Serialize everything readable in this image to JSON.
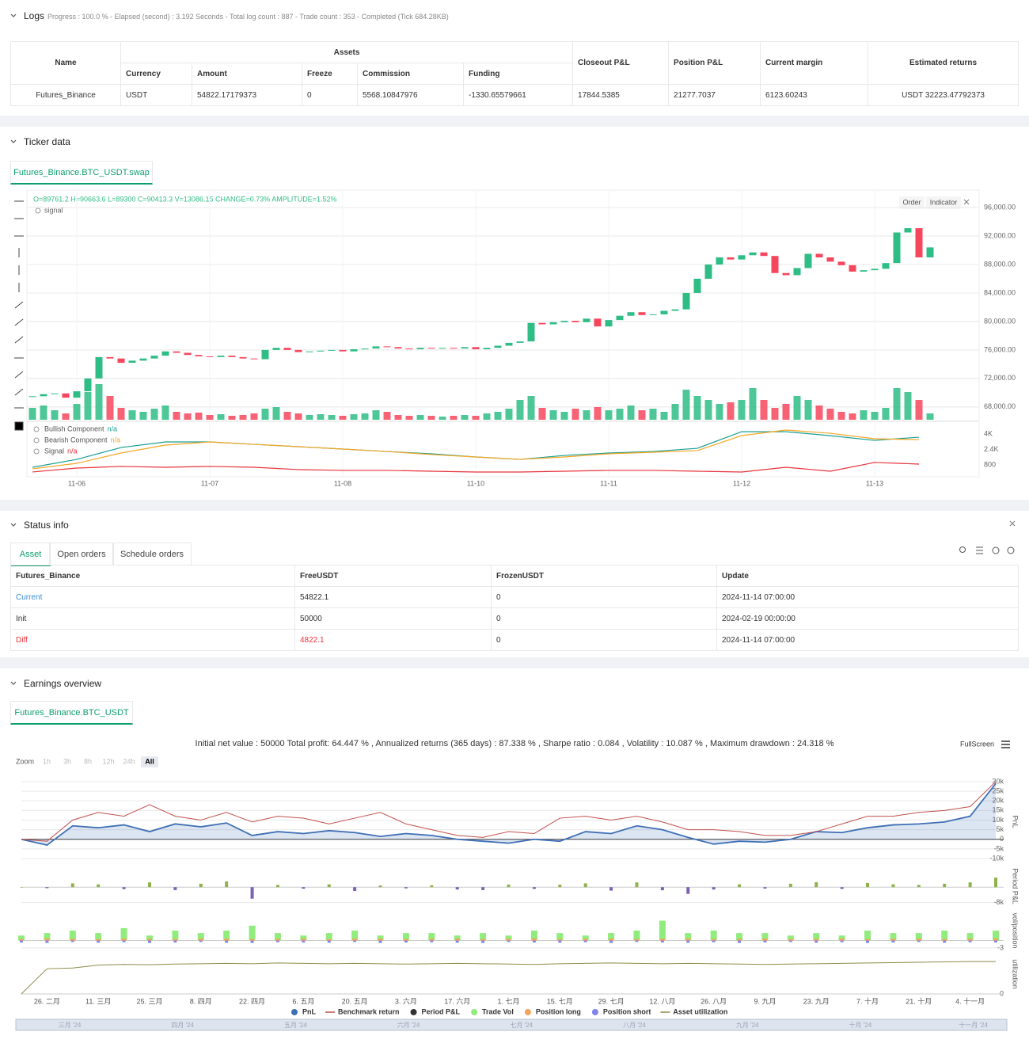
{
  "logs": {
    "title": "Logs",
    "summary": "Progress : 100.0 % - Elapsed (second) : 3.192 Seconds - Total log count : 887 - Trade count : 353 - Completed (Tick 684.28KB)"
  },
  "assets": {
    "name_header": "Name",
    "group_header": "Assets",
    "columns": [
      "Currency",
      "Amount",
      "Freeze",
      "Commission",
      "Funding"
    ],
    "other_headers": [
      "Closeout P&L",
      "Position P&L",
      "Current margin",
      "Estimated returns"
    ],
    "row": [
      "Futures_Binance",
      "USDT",
      "54822.17179373",
      "0",
      "5568.10847976",
      "-1330.65579661",
      "17844.5385",
      "21277.7037",
      "6123.60243",
      "USDT 32223.47792373"
    ]
  },
  "ticker": {
    "title": "Ticker data",
    "tab": "Futures_Binance.BTC_USDT.swap",
    "buttons": [
      "Order",
      "Indicator"
    ]
  },
  "status": {
    "title": "Status info",
    "tabs": [
      "Asset",
      "Open orders",
      "Schedule orders"
    ],
    "headers": [
      "Futures_Binance",
      "FreeUSDT",
      "FrozenUSDT",
      "Update"
    ],
    "rows": [
      [
        "Current",
        "54822.1",
        "0",
        "2024-11-14 07:00:00"
      ],
      [
        "Init",
        "50000",
        "0",
        "2024-02-19 00:00:00"
      ],
      [
        "Diff",
        "4822.1",
        "0",
        "2024-11-14 07:00:00"
      ]
    ]
  },
  "earnings": {
    "title": "Earnings overview",
    "tab": "Futures_Binance.BTC_USDT",
    "stats": "Initial net value : 50000 Total profit: 64.447 % , Annualized returns (365 days) : 87.338 % , Sharpe ratio : 0.084 , Volatility : 10.087 % , Maximum drawdown : 24.318 %",
    "fullscreen": "FullScreen",
    "zoom_label": "Zoom",
    "zoom_buttons": [
      "1h",
      "3h",
      "8h",
      "12h",
      "24h",
      "All"
    ],
    "zoom_active": 5,
    "navigator": [
      "三月 '24",
      "四月 '24",
      "五月 '24",
      "六月 '24",
      "七月 '24",
      "八月 '24",
      "九月 '24",
      "十月 '24",
      "十一月 '24"
    ]
  },
  "chart_data": [
    {
      "type": "candlestick",
      "annotation": "O=89761.2 H=90663.6 L=89300 C=90413.3 V=13086.15 CHANGE=0.73% AMPLITUDE=1.52%",
      "indicator_name": "signal",
      "categories": [
        null,
        null,
        null,
        null,
        "11-06",
        null,
        null,
        null,
        null,
        null,
        null,
        null,
        null,
        null,
        null,
        null,
        "11-07",
        null,
        null,
        null,
        null,
        null,
        null,
        null,
        null,
        null,
        null,
        null,
        "11-08",
        null,
        null,
        null,
        null,
        null,
        null,
        null,
        null,
        null,
        null,
        null,
        "11-10",
        null,
        null,
        null,
        null,
        null,
        null,
        null,
        null,
        null,
        null,
        null,
        "11-11",
        null,
        null,
        null,
        null,
        null,
        null,
        null,
        null,
        null,
        null,
        null,
        "11-12",
        null,
        null,
        null,
        null,
        null,
        null,
        null,
        null,
        null,
        null,
        null,
        "11-13",
        null,
        null,
        null,
        null,
        null
      ],
      "close": [
        69500,
        69800,
        69900,
        69300,
        70200,
        72000,
        75000,
        74800,
        74200,
        74500,
        74800,
        75200,
        75800,
        75600,
        75300,
        75100,
        75000,
        75200,
        75000,
        74800,
        74700,
        76000,
        76300,
        76000,
        75700,
        75800,
        75900,
        76000,
        75800,
        76100,
        76200,
        76500,
        76400,
        76200,
        76100,
        76300,
        76200,
        76300,
        76200,
        76400,
        76100,
        76300,
        76600,
        77000,
        77200,
        79800,
        79600,
        79900,
        80100,
        79900,
        80400,
        79300,
        80200,
        80800,
        81300,
        80900,
        81000,
        81500,
        81700,
        84000,
        86000,
        88000,
        89000,
        88700,
        89300,
        89700,
        89200,
        86800,
        86500,
        87500,
        89500,
        89000,
        88400,
        87900,
        87000,
        87200,
        87400,
        88200,
        92500,
        93100,
        89000,
        90400
      ],
      "volume": [
        15,
        18,
        12,
        8,
        20,
        35,
        45,
        30,
        15,
        12,
        10,
        14,
        18,
        10,
        8,
        9,
        6,
        7,
        5,
        6,
        8,
        14,
        16,
        10,
        8,
        6,
        7,
        6,
        5,
        7,
        8,
        12,
        10,
        6,
        5,
        6,
        5,
        4,
        5,
        6,
        5,
        8,
        10,
        14,
        25,
        30,
        15,
        12,
        10,
        14,
        12,
        16,
        12,
        14,
        18,
        12,
        14,
        10,
        20,
        38,
        30,
        25,
        20,
        22,
        25,
        40,
        25,
        15,
        20,
        30,
        25,
        18,
        14,
        10,
        8,
        12,
        10,
        15,
        40,
        35,
        25,
        8
      ],
      "up_color": "#2ebd85",
      "down_color": "#f6465d",
      "grid": true,
      "ylim": [
        66200,
        98450
      ],
      "yticks": [
        {
          "value": 96000,
          "label": "96,000.00"
        },
        {
          "value": 92000,
          "label": "92,000.00"
        },
        {
          "value": 88000,
          "label": "88,000.00"
        },
        {
          "value": 84000,
          "label": "84,000.00"
        },
        {
          "value": 80000,
          "label": "80,000.00"
        },
        {
          "value": 76000,
          "label": "76,000.00"
        },
        {
          "value": 72000,
          "label": "72,000.00"
        },
        {
          "value": 68000,
          "label": "68,000.00"
        }
      ]
    },
    {
      "type": "line",
      "x": [
        0,
        4,
        8,
        12,
        16,
        20,
        24,
        28,
        32,
        36,
        40,
        44,
        48,
        52,
        56,
        60,
        64,
        68,
        72,
        76,
        80
      ],
      "xlim": [
        0,
        81
      ],
      "ylim": [
        -270,
        5070
      ],
      "yticks": [
        {
          "value": 4000,
          "label": "4K"
        },
        {
          "value": 2400,
          "label": "2.4K"
        },
        800
      ],
      "series": [
        {
          "name": "Bullish Component",
          "current": "n/a",
          "color": "#1a9e92",
          "values": [
            550,
            1370,
            2600,
            3180,
            3180,
            2930,
            2690,
            2440,
            2190,
            1950,
            1620,
            1370,
            1780,
            2030,
            2190,
            2520,
            4240,
            4240,
            3830,
            3340,
            3670
          ]
        },
        {
          "name": "Bearish Component",
          "current": "n/a",
          "color": "#f5a623",
          "values": [
            390,
            960,
            2030,
            2850,
            3180,
            2930,
            2690,
            2440,
            2190,
            1870,
            1620,
            1370,
            1620,
            1950,
            2110,
            2280,
            3840,
            4410,
            4080,
            3510,
            3420
          ]
        },
        {
          "name": "Signal",
          "current": "n/a",
          "color": "#e8333b",
          "values": [
            62,
            470,
            640,
            550,
            640,
            550,
            310,
            230,
            230,
            140,
            60,
            60,
            140,
            230,
            230,
            140,
            60,
            550,
            140,
            1050,
            880
          ]
        }
      ]
    },
    {
      "type": "line",
      "y_label": "PnL",
      "categories": [
        null,
        "26. 二月",
        null,
        "11. 三月",
        null,
        "25. 三月",
        null,
        "8. 四月",
        null,
        "22. 四月",
        null,
        "6. 五月",
        null,
        "20. 五月",
        null,
        "3. 六月",
        null,
        "17. 六月",
        null,
        "1. 七月",
        null,
        "15. 七月",
        null,
        "29. 七月",
        null,
        "12. 八月",
        null,
        "26. 八月",
        null,
        "9. 九月",
        null,
        "23. 九月",
        null,
        "7. 十月",
        null,
        "21. 十月",
        null,
        "4. 十一月",
        null
      ],
      "ylim": [
        -12460,
        30800
      ],
      "yticks": [
        {
          "value": 30000,
          "label": "30k"
        },
        {
          "value": 25000,
          "label": "25k"
        },
        {
          "value": 20000,
          "label": "20k"
        },
        {
          "value": 15000,
          "label": "15k"
        },
        {
          "value": 10000,
          "label": "10k"
        },
        {
          "value": 5000,
          "label": "5k"
        },
        0,
        {
          "value": -5000,
          "label": "-5k"
        },
        {
          "value": -10000,
          "label": "-10k"
        }
      ],
      "series": [
        {
          "name": "PnL",
          "color": "#3f6fb5",
          "marker": "circle",
          "area": true,
          "values": [
            0,
            -3000,
            7000,
            6000,
            7500,
            4000,
            8000,
            6500,
            8500,
            2000,
            4000,
            3000,
            4500,
            3500,
            1500,
            3000,
            2000,
            0,
            -1000,
            -2000,
            0,
            -1000,
            4000,
            3000,
            7000,
            5000,
            1000,
            -2500,
            -1000,
            -1500,
            0,
            4000,
            3500,
            6000,
            7500,
            8000,
            9000,
            12000,
            29000
          ]
        },
        {
          "name": "Benchmark return",
          "color": "#c0504d",
          "marker": "line",
          "area": false,
          "values": [
            0,
            -1000,
            10000,
            14000,
            12000,
            18000,
            12000,
            10000,
            14000,
            9000,
            12000,
            11000,
            8000,
            11000,
            14000,
            8000,
            5000,
            2000,
            1000,
            4000,
            3000,
            11000,
            12000,
            10000,
            12000,
            9000,
            5000,
            5000,
            4000,
            2000,
            2000,
            4000,
            8000,
            12000,
            12000,
            14000,
            15000,
            17000,
            30000
          ]
        }
      ]
    },
    {
      "type": "bar",
      "y_label": "Period P&L",
      "ylim": [
        -9000,
        10000
      ],
      "yticks": [
        {
          "value": -8000,
          "label": "-8k"
        }
      ],
      "positive_color": "#8fb24a",
      "negative_color": "#7a62b0",
      "series": [
        {
          "name": "Period P&L",
          "color": "#333333",
          "marker": "circle",
          "values": [
            0,
            -500,
            2000,
            1500,
            -1000,
            2500,
            -1500,
            1800,
            3000,
            -6000,
            1200,
            -800,
            1500,
            -2000,
            900,
            -600,
            1000,
            -1200,
            -1500,
            1400,
            -900,
            1300,
            2000,
            -1800,
            2500,
            -1600,
            -3500,
            -1200,
            1500,
            -700,
            1800,
            2600,
            -900,
            2200,
            1500,
            1200,
            1800,
            2500,
            5000
          ]
        }
      ]
    },
    {
      "type": "bar",
      "y_label": "vol/position",
      "ylim": [
        -4,
        12
      ],
      "yticks": [
        -3
      ],
      "series": [
        {
          "name": "Trade Vol",
          "color": "#90ed7d",
          "marker": "circle",
          "values": [
            2,
            3,
            4,
            3,
            5,
            2,
            4,
            3,
            4,
            6,
            3,
            2,
            3,
            4,
            2,
            3,
            3,
            2,
            3,
            2,
            4,
            3,
            2,
            3,
            4,
            8,
            3,
            4,
            3,
            3,
            2,
            3,
            2,
            4,
            3,
            3,
            4,
            3,
            4
          ]
        },
        {
          "name": "Position long",
          "color": "#f7a35c",
          "marker": "circle",
          "values": [
            0.6,
            0.8,
            0.7,
            0.6,
            0.8,
            0.7,
            0.6,
            0.8,
            0.7,
            0.6,
            0.7,
            0.8,
            0.6,
            0.7,
            0.8,
            0.6,
            0.7,
            0.8,
            0.6,
            0.7,
            0.8,
            0.6,
            0.7,
            0.8,
            0.6,
            0.7,
            0.8,
            0.6,
            0.7,
            0.8,
            0.6,
            0.7,
            0.8,
            0.6,
            0.7,
            0.8,
            0.6,
            0.7,
            0.8
          ]
        },
        {
          "name": "Position short",
          "color": "#8085e9",
          "marker": "circle",
          "values": [
            -0.8,
            -1,
            -0.6,
            -0.9,
            -0.7,
            -1,
            -0.8,
            -0.6,
            -0.9,
            -1,
            -0.7,
            -0.8,
            -0.9,
            -0.6,
            -1,
            -0.8,
            -0.7,
            -0.9,
            -1,
            -0.6,
            -0.8,
            -0.9,
            -0.7,
            -1,
            -0.6,
            -0.8,
            -0.9,
            -0.7,
            -1,
            -0.8,
            -0.6,
            -0.9,
            -0.7,
            -1,
            -0.8,
            -0.6,
            -0.9,
            -0.7,
            -0.8
          ]
        }
      ]
    },
    {
      "type": "line",
      "y_label": "utilization",
      "ylim": [
        0,
        110
      ],
      "yticks": [
        0
      ],
      "series": [
        {
          "name": "Asset utilization",
          "color": "#8d8b4a",
          "marker": "line",
          "area": false,
          "values": [
            0,
            70,
            72,
            80,
            82,
            81,
            83,
            84,
            85,
            84,
            86,
            85,
            84,
            85,
            84,
            83,
            84,
            85,
            84,
            83,
            82,
            84,
            85,
            86,
            85,
            84,
            85,
            84,
            83,
            82,
            83,
            84,
            85,
            86,
            87,
            88,
            89,
            90,
            90
          ]
        }
      ]
    }
  ]
}
